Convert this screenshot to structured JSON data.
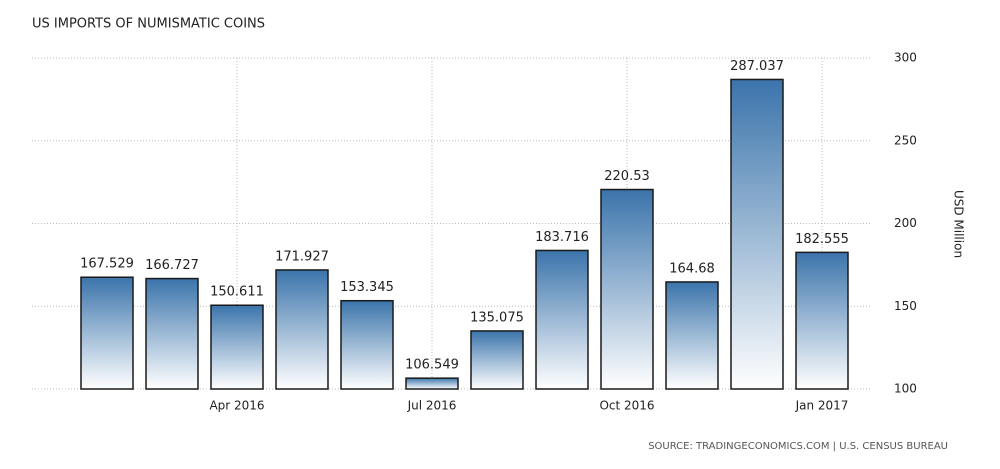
{
  "chart_data": {
    "type": "bar",
    "title": "US IMPORTS OF NUMISMATIC COINS",
    "categories": [
      null,
      null,
      "Apr 2016",
      null,
      null,
      "Jul 2016",
      null,
      null,
      "Oct 2016",
      null,
      null,
      "Jan 2017"
    ],
    "values": [
      167.529,
      166.727,
      150.611,
      171.927,
      153.345,
      106.549,
      135.075,
      183.716,
      220.53,
      164.68,
      287.037,
      182.555
    ],
    "color": "#3b74ab",
    "ylim": [
      100,
      300
    ],
    "yticks": [
      100,
      150,
      200,
      250,
      300
    ],
    "y_axis_label": "USD Million",
    "grid": true,
    "source": "SOURCE: TRADINGECONOMICS.COM | U.S. CENSUS BUREAU"
  }
}
